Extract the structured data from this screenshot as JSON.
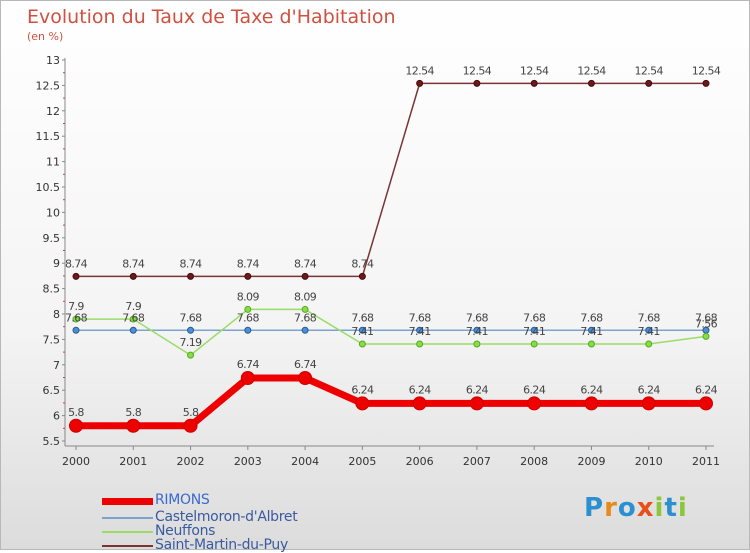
{
  "title": "Evolution du Taux de Taxe d'Habitation",
  "unit": "(en %)",
  "logo": {
    "letters": [
      "P",
      "r",
      "o",
      "x",
      "i",
      "t",
      "i"
    ],
    "colors": [
      "#2b8fd0",
      "#e88a1a",
      "#2b8fd0",
      "#e8501a",
      "#8cc63f",
      "#2b8fd0",
      "#8cc63f"
    ]
  },
  "chart_data": {
    "type": "line",
    "title": "Evolution du Taux de Taxe d'Habitation",
    "ylabel": "(en %)",
    "xlabel": "",
    "x": [
      "2000",
      "2001",
      "2002",
      "2003",
      "2004",
      "2005",
      "2006",
      "2007",
      "2008",
      "2009",
      "2010",
      "2011"
    ],
    "ylim": [
      5.5,
      13
    ],
    "yticks": [
      "5.5",
      "6",
      "6.5",
      "7",
      "7.5",
      "8",
      "8.5",
      "9",
      "9.5",
      "10",
      "10.5",
      "11",
      "11.5",
      "12",
      "12.5",
      "13"
    ],
    "legend_position": "bottom-left",
    "series": [
      {
        "name": "RIMONS",
        "color": "#ee0000",
        "values": [
          5.8,
          5.8,
          5.8,
          6.74,
          6.74,
          6.24,
          6.24,
          6.24,
          6.24,
          6.24,
          6.24,
          6.24
        ],
        "labels": [
          "5.8",
          "5.8",
          "5.8",
          "6.74",
          "6.74",
          "6.24",
          "6.24",
          "6.24",
          "6.24",
          "6.24",
          "6.24",
          "6.24"
        ]
      },
      {
        "name": "Castelmoron-d'Albret",
        "color": "#7ba3cf",
        "values": [
          7.68,
          7.68,
          7.68,
          7.68,
          7.68,
          7.68,
          7.68,
          7.68,
          7.68,
          7.68,
          7.68,
          7.68
        ],
        "labels": [
          "7.68",
          "7.68",
          "7.68",
          "7.68",
          "7.68",
          "7.68",
          "7.68",
          "7.68",
          "7.68",
          "7.68",
          "7.68",
          "7.68"
        ]
      },
      {
        "name": "Neuffons",
        "color": "#99dd66",
        "values": [
          7.9,
          7.9,
          7.19,
          8.09,
          8.09,
          7.41,
          7.41,
          7.41,
          7.41,
          7.41,
          7.41,
          7.56
        ],
        "labels": [
          "7.9",
          "7.9",
          "7.19",
          "8.09",
          "8.09",
          "7.41",
          "7.41",
          "7.41",
          "7.41",
          "7.41",
          "7.41",
          "7.56"
        ]
      },
      {
        "name": "Saint-Martin-du-Puy",
        "color": "#7a3333",
        "values": [
          8.74,
          8.74,
          8.74,
          8.74,
          8.74,
          8.74,
          12.54,
          12.54,
          12.54,
          12.54,
          12.54,
          12.54
        ],
        "labels": [
          "8.74",
          "8.74",
          "8.74",
          "8.74",
          "8.74",
          "8.74",
          "12.54",
          "12.54",
          "12.54",
          "12.54",
          "12.54",
          "12.54"
        ]
      }
    ]
  }
}
